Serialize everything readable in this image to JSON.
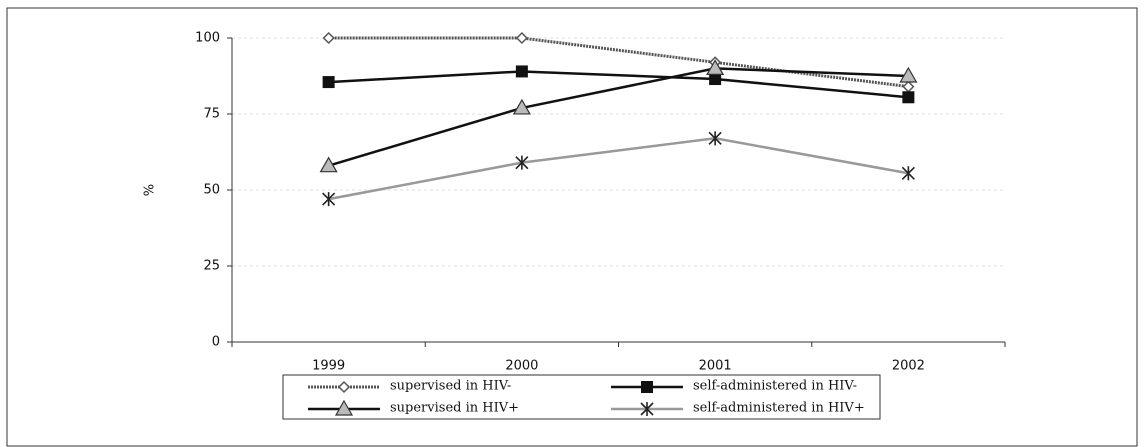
{
  "chart_data": {
    "type": "line",
    "ylabel": "%",
    "categories": [
      "1999",
      "2000",
      "2001",
      "2002"
    ],
    "series": [
      {
        "name": "supervised in HIV-",
        "color": "#555555",
        "marker": "diamond",
        "dashed": true,
        "values": [
          100,
          100,
          92,
          84
        ]
      },
      {
        "name": "self-administered in HIV-",
        "color": "#111111",
        "marker": "square",
        "dashed": false,
        "values": [
          85.5,
          89,
          86.5,
          80.5
        ]
      },
      {
        "name": "supervised in HIV+",
        "color": "#111111",
        "marker": "triangle",
        "dashed": false,
        "values": [
          58,
          77,
          90,
          87.5
        ]
      },
      {
        "name": "self-administered in HIV+",
        "color": "#999999",
        "marker": "star",
        "dashed": false,
        "values": [
          47,
          59,
          67,
          55.5
        ]
      }
    ],
    "ylim": [
      0,
      100
    ],
    "yticks": [
      0,
      25,
      50,
      75,
      100
    ],
    "grid": true
  }
}
